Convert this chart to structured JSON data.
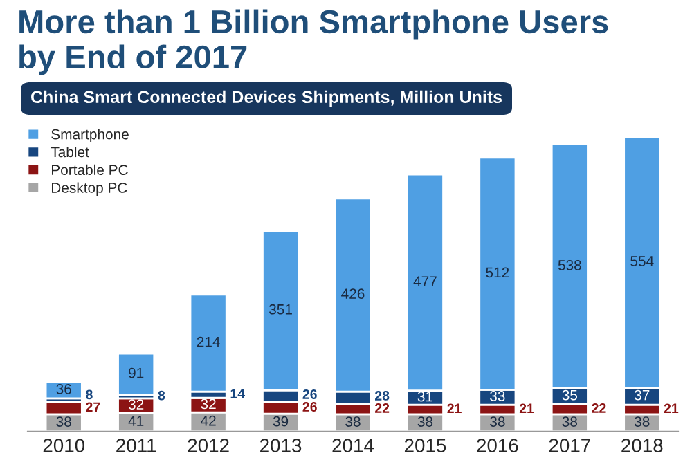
{
  "chart_data": {
    "type": "bar",
    "title": "More than 1 Billion Smartphone Users\nby End of 2017",
    "subtitle": "China Smart Connected Devices Shipments, Million Units",
    "categories": [
      "2010",
      "2011",
      "2012",
      "2013",
      "2014",
      "2015",
      "2016",
      "2017",
      "2018"
    ],
    "stacked": true,
    "data_labels": true,
    "legend": "top left",
    "grid": false,
    "series": [
      {
        "name": "Desktop PC",
        "color": "#a6a6a6",
        "values": [
          38,
          41,
          42,
          39,
          38,
          38,
          38,
          38,
          38
        ]
      },
      {
        "name": "Portable PC",
        "color": "#8c1414",
        "values": [
          27,
          32,
          32,
          26,
          22,
          21,
          21,
          22,
          21
        ]
      },
      {
        "name": "Tablet",
        "color": "#17467f",
        "values": [
          8,
          8,
          14,
          26,
          28,
          31,
          33,
          35,
          37
        ]
      },
      {
        "name": "Smartphone",
        "color": "#4f9fe3",
        "values": [
          36,
          91,
          214,
          351,
          426,
          477,
          512,
          538,
          554
        ]
      }
    ]
  }
}
